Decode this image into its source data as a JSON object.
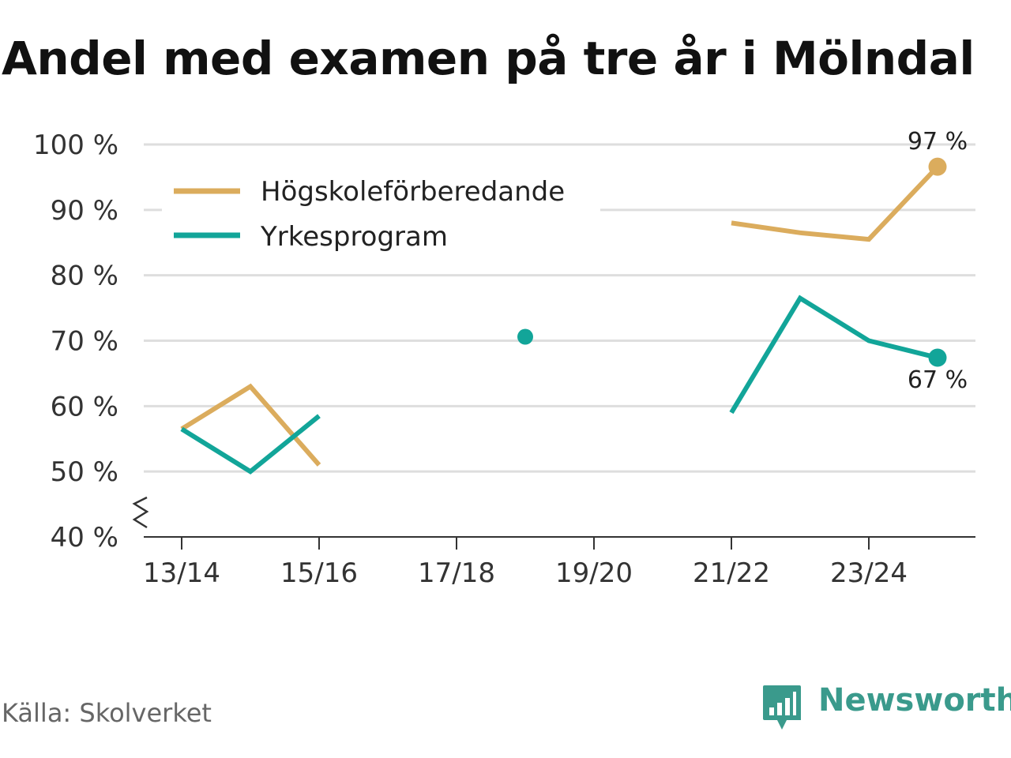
{
  "title": "Andel med examen på tre år i Mölndal",
  "source": "Källa: Skolverket",
  "brand": {
    "name": "Newsworthy",
    "color": "#3a9a8c",
    "icon": "bar-chart-speech-bubble-icon"
  },
  "chart_data": {
    "type": "line",
    "title": "Andel med examen på tre år i Mölndal",
    "x": [
      "13/14",
      "14/15",
      "15/16",
      "16/17",
      "17/18",
      "18/19",
      "19/20",
      "20/21",
      "21/22",
      "22/23",
      "23/24",
      "24/25"
    ],
    "x_tick_labels": [
      "13/14",
      "15/16",
      "17/18",
      "19/20",
      "21/22",
      "23/24"
    ],
    "y_ticks": [
      40,
      50,
      60,
      70,
      80,
      90,
      100
    ],
    "y_tick_labels": [
      "40 %",
      "50 %",
      "60 %",
      "70 %",
      "80 %",
      "90 %",
      "100 %"
    ],
    "ylim": [
      40,
      100
    ],
    "y_axis_break": true,
    "grid": true,
    "legend_position": "top-left",
    "series": [
      {
        "name": "Högskoleförberedande",
        "color": "#dbac5d",
        "values": [
          56.5,
          63,
          51,
          null,
          null,
          null,
          null,
          null,
          88,
          86.5,
          85.5,
          96.6
        ]
      },
      {
        "name": "Yrkesprogram",
        "color": "#12a599",
        "values": [
          56.5,
          50,
          58.5,
          null,
          null,
          70.6,
          null,
          null,
          59,
          76.5,
          70,
          67.4
        ]
      }
    ],
    "annotations": [
      {
        "series": 0,
        "index": 11,
        "text": "97 %",
        "position": "above"
      },
      {
        "series": 1,
        "index": 11,
        "text": "67 %",
        "position": "below"
      }
    ]
  }
}
